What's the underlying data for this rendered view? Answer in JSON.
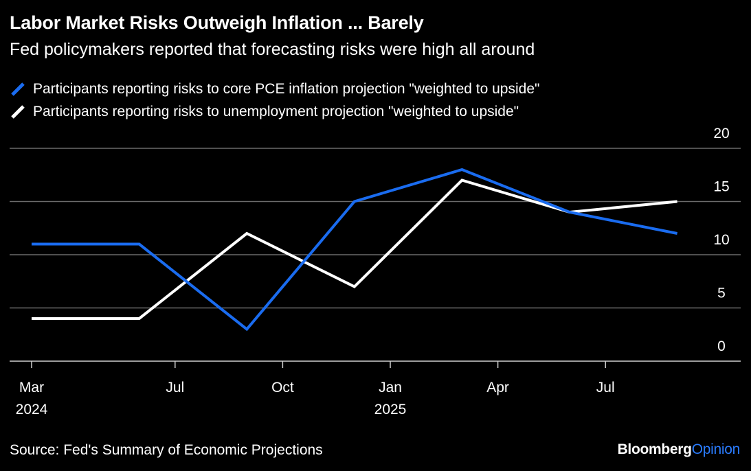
{
  "header": {
    "title": "Labor Market Risks Outweigh Inflation ... Barely",
    "subtitle": "Fed policymakers reported that forecasting risks were high all around"
  },
  "colors": {
    "background": "#000000",
    "inflation_series": "#1a6cf0",
    "unemployment_series": "#ffffff",
    "gridline": "#6b6b6b",
    "brand_accent": "#2a7cff"
  },
  "footer": {
    "source": "Source: Fed's Summary of Economic Projections",
    "brand_name": "Bloomberg",
    "brand_accent": "Opinion"
  },
  "chart_data": {
    "type": "line",
    "x": [
      "2024-03",
      "2024-06",
      "2024-09",
      "2024-12",
      "2025-03",
      "2025-06",
      "2025-09"
    ],
    "series": [
      {
        "name": "Participants reporting risks to core PCE inflation projection \"weighted to upside\"",
        "color": "#1a6cf0",
        "values": [
          11,
          11,
          3,
          15,
          18,
          14,
          12
        ]
      },
      {
        "name": "Participants reporting risks to unemployment projection \"weighted to upside\"",
        "color": "#ffffff",
        "values": [
          4,
          4,
          12,
          7,
          17,
          14,
          15
        ]
      }
    ],
    "x_ticks": [
      {
        "x": "2024-03",
        "label": "Mar",
        "year": "2024"
      },
      {
        "x": "2024-07",
        "label": "Jul",
        "year": ""
      },
      {
        "x": "2024-10",
        "label": "Oct",
        "year": ""
      },
      {
        "x": "2025-01",
        "label": "Jan",
        "year": "2025"
      },
      {
        "x": "2025-04",
        "label": "Apr",
        "year": ""
      },
      {
        "x": "2025-07",
        "label": "Jul",
        "year": ""
      }
    ],
    "y_ticks": [
      0,
      5,
      10,
      15,
      20
    ],
    "ylim": [
      0,
      20
    ],
    "xlim": [
      "2024-03",
      "2025-10"
    ],
    "y_axis_side": "right",
    "grid": true,
    "legend_position": "top-left"
  }
}
